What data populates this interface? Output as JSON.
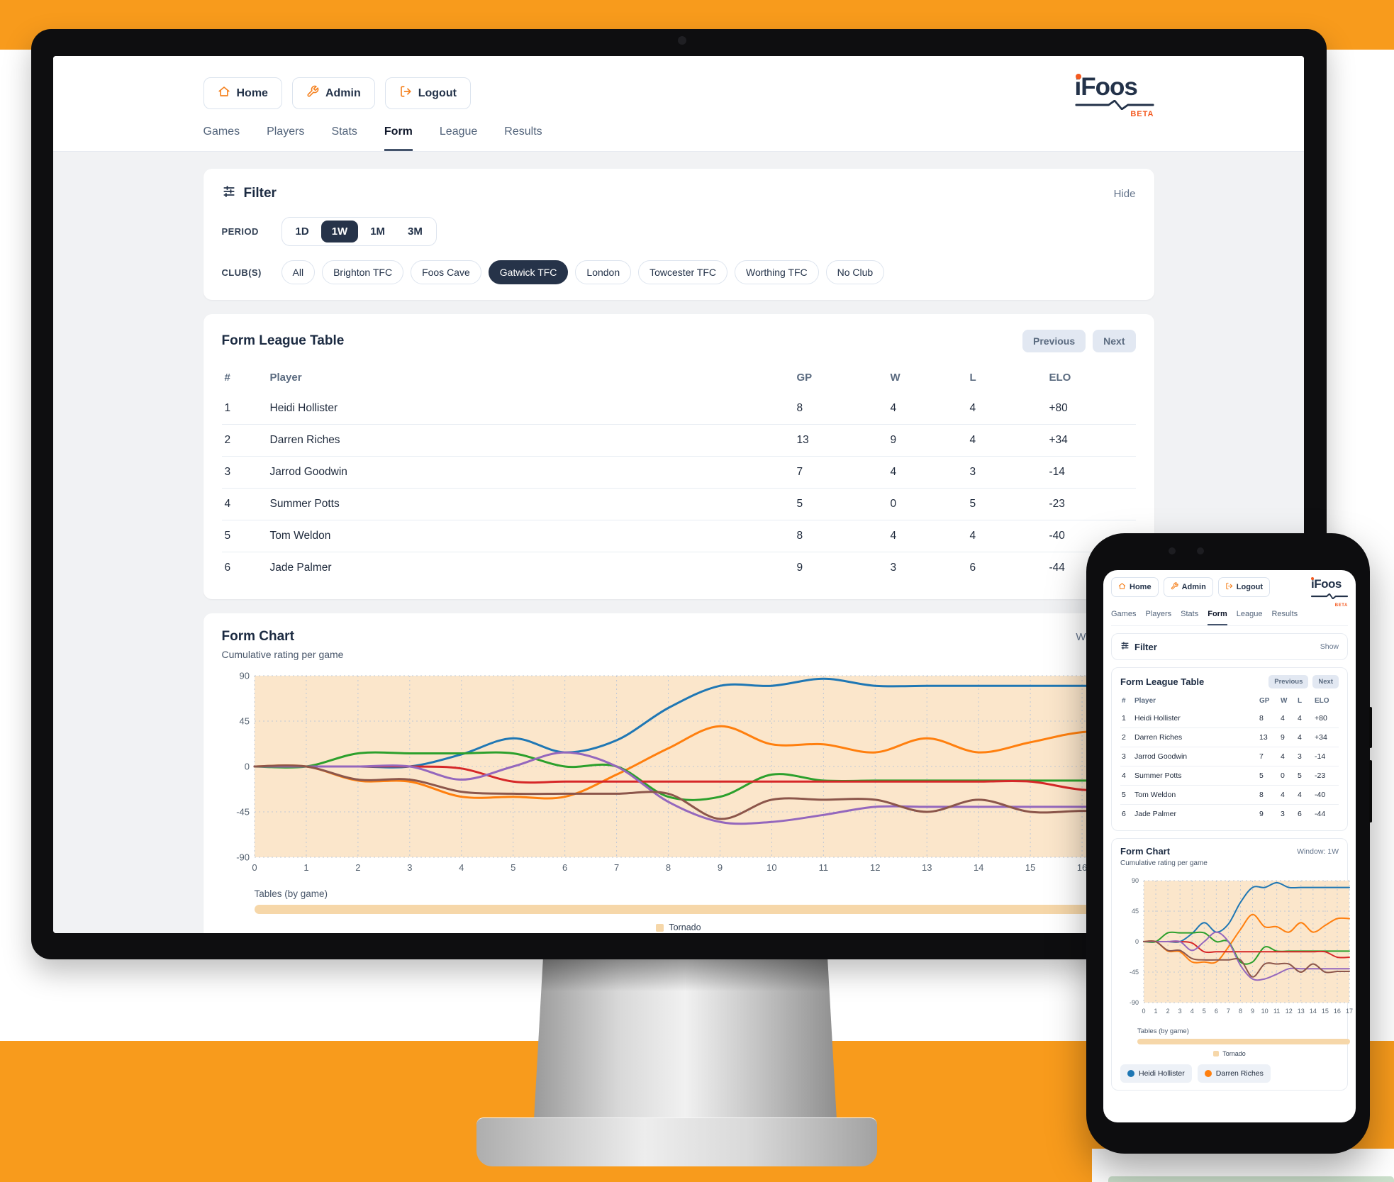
{
  "app": {
    "logo_text": "iFoos",
    "logo_beta": "BETA"
  },
  "nav": {
    "home": "Home",
    "admin": "Admin",
    "logout": "Logout"
  },
  "tabs": {
    "items": [
      "Games",
      "Players",
      "Stats",
      "Form",
      "League",
      "Results"
    ],
    "active": "Form"
  },
  "filter": {
    "title": "Filter",
    "hide_link": "Hide",
    "show_link": "Show",
    "period_label": "PERIOD",
    "periods": [
      "1D",
      "1W",
      "1M",
      "3M"
    ],
    "selected_period": "1W",
    "clubs_label": "CLUB(S)",
    "clubs": [
      "All",
      "Brighton TFC",
      "Foos Cave",
      "Gatwick TFC",
      "London",
      "Towcester TFC",
      "Worthing TFC",
      "No Club"
    ],
    "selected_club": "Gatwick TFC"
  },
  "league_table": {
    "title": "Form League Table",
    "previous": "Previous",
    "next": "Next",
    "columns": [
      "#",
      "Player",
      "GP",
      "W",
      "L",
      "ELO"
    ],
    "rows": [
      {
        "rank": "1",
        "player": "Heidi Hollister",
        "gp": "8",
        "w": "4",
        "l": "4",
        "elo": "+80"
      },
      {
        "rank": "2",
        "player": "Darren Riches",
        "gp": "13",
        "w": "9",
        "l": "4",
        "elo": "+34"
      },
      {
        "rank": "3",
        "player": "Jarrod Goodwin",
        "gp": "7",
        "w": "4",
        "l": "3",
        "elo": "-14"
      },
      {
        "rank": "4",
        "player": "Summer Potts",
        "gp": "5",
        "w": "0",
        "l": "5",
        "elo": "-23"
      },
      {
        "rank": "5",
        "player": "Tom Weldon",
        "gp": "8",
        "w": "4",
        "l": "4",
        "elo": "-40"
      },
      {
        "rank": "6",
        "player": "Jade Palmer",
        "gp": "9",
        "w": "3",
        "l": "6",
        "elo": "-44"
      }
    ]
  },
  "form_chart": {
    "title": "Form Chart",
    "subtitle": "Cumulative rating per game",
    "window_label": "Window: 1W",
    "tables_label": "Tables (by game)",
    "table_legend": "Tornado",
    "table_color": "#f6d7a9"
  },
  "chart_data": {
    "type": "line",
    "title": "Form Chart",
    "subtitle": "Cumulative rating per game",
    "x": [
      0,
      1,
      2,
      3,
      4,
      5,
      6,
      7,
      8,
      9,
      10,
      11,
      12,
      13,
      14,
      15,
      16,
      17
    ],
    "ylim": [
      -90,
      90
    ],
    "yticks": [
      90,
      45,
      0,
      -45,
      -90
    ],
    "grid": "dotted",
    "plot_bg": "#fbe6cb",
    "legend_position": "bottom",
    "series": [
      {
        "name": "Heidi Hollister",
        "color": "#1f77b4",
        "values": [
          0,
          0,
          0,
          0,
          12,
          28,
          14,
          26,
          58,
          80,
          80,
          87,
          80,
          80,
          80,
          80,
          80,
          80
        ]
      },
      {
        "name": "Darren Riches",
        "color": "#ff7f0e",
        "values": [
          0,
          0,
          -14,
          -15,
          -30,
          -30,
          -30,
          -8,
          18,
          40,
          22,
          22,
          14,
          28,
          14,
          24,
          34,
          34
        ]
      },
      {
        "name": "Jarrod Goodwin",
        "color": "#2ca02c",
        "values": [
          0,
          0,
          13,
          13,
          13,
          13,
          0,
          0,
          -30,
          -30,
          -8,
          -14,
          -14,
          -14,
          -14,
          -14,
          -14,
          -14
        ]
      },
      {
        "name": "Summer Potts",
        "color": "#d62728",
        "values": [
          0,
          0,
          0,
          0,
          -2,
          -15,
          -15,
          -15,
          -15,
          -15,
          -15,
          -15,
          -15,
          -15,
          -15,
          -15,
          -23,
          -23
        ]
      },
      {
        "name": "Tom Weldon",
        "color": "#9467bd",
        "values": [
          0,
          0,
          0,
          0,
          -13,
          0,
          14,
          0,
          -35,
          -55,
          -55,
          -48,
          -40,
          -40,
          -40,
          -40,
          -40,
          -40
        ]
      },
      {
        "name": "Jade Palmer",
        "color": "#8c564b",
        "values": [
          0,
          0,
          -13,
          -13,
          -25,
          -27,
          -27,
          -27,
          -27,
          -52,
          -33,
          -33,
          -33,
          -45,
          -33,
          -45,
          -44,
          -44
        ]
      }
    ]
  }
}
